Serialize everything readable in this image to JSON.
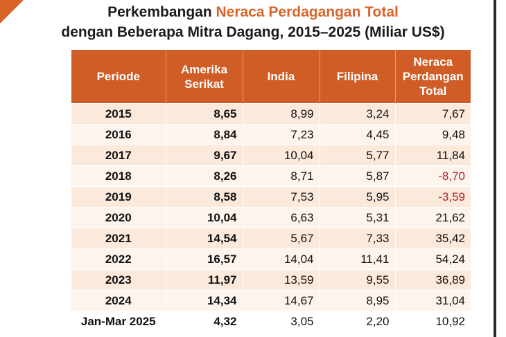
{
  "title": {
    "line1_prefix": "Perkembangan ",
    "line1_accent": "Neraca Perdagangan Total",
    "line2": "dengan Beberapa Mitra Dagang, 2015–2025 (Miliar US$)"
  },
  "colors": {
    "accent": "#d9642a",
    "header_bg": "#d05c26",
    "negative": "#b0202a"
  },
  "chart_data": {
    "type": "table",
    "columns": [
      "Periode",
      "Amerika Serikat",
      "India",
      "Filipina",
      "Neraca Perdangan Total"
    ],
    "header_lines": [
      [
        "Periode"
      ],
      [
        "Amerika",
        "Serikat"
      ],
      [
        "India"
      ],
      [
        "Filipina"
      ],
      [
        "Neraca",
        "Perdangan",
        "Total"
      ]
    ],
    "rows": [
      [
        "2015",
        "8,65",
        "8,99",
        "3,24",
        "7,67"
      ],
      [
        "2016",
        "8,84",
        "7,23",
        "4,45",
        "9,48"
      ],
      [
        "2017",
        "9,67",
        "10,04",
        "5,77",
        "11,84"
      ],
      [
        "2018",
        "8,26",
        "8,71",
        "5,87",
        "-8,70"
      ],
      [
        "2019",
        "8,58",
        "7,53",
        "5,95",
        "-3,59"
      ],
      [
        "2020",
        "10,04",
        "6,63",
        "5,31",
        "21,62"
      ],
      [
        "2021",
        "14,54",
        "5,67",
        "7,33",
        "35,42"
      ],
      [
        "2022",
        "16,57",
        "14,04",
        "11,41",
        "54,24"
      ],
      [
        "2023",
        "11,97",
        "13,59",
        "9,55",
        "36,89"
      ],
      [
        "2024",
        "14,34",
        "14,67",
        "8,95",
        "31,04"
      ],
      [
        "Jan-Mar 2025",
        "4,32",
        "3,05",
        "2,20",
        "10,92"
      ]
    ]
  }
}
